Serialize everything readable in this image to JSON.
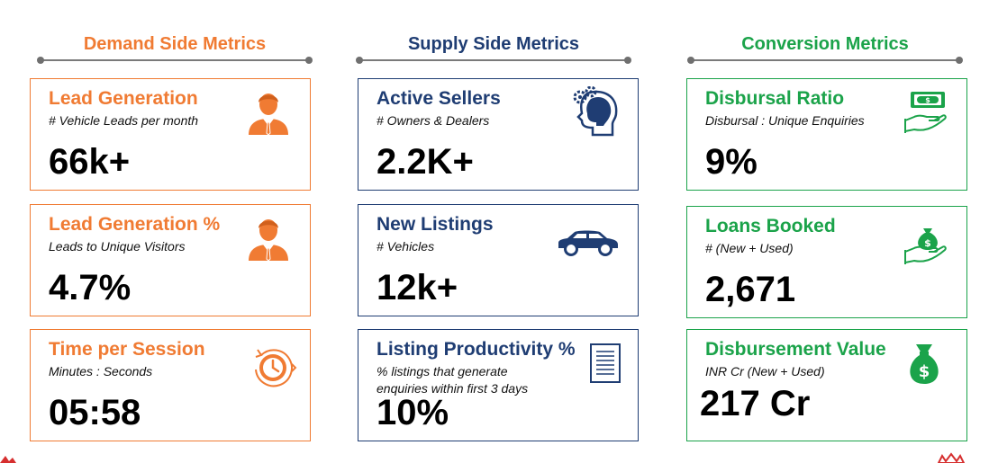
{
  "columns": [
    {
      "header": "Demand Side Metrics",
      "color": "#f07b33",
      "cards": [
        {
          "title": "Lead Generation",
          "subtitle": "#  Vehicle Leads per month",
          "value": "66k+",
          "icon": "businessman-icon"
        },
        {
          "title": "Lead Generation %",
          "subtitle": "Leads to Unique Visitors",
          "value": "4.7%",
          "icon": "businessman-icon"
        },
        {
          "title": "Time per Session",
          "subtitle": "Minutes : Seconds",
          "value": "05:58",
          "icon": "clock-icon"
        }
      ]
    },
    {
      "header": "Supply Side Metrics",
      "color": "#1f3d73",
      "cards": [
        {
          "title": "Active Sellers",
          "subtitle": "# Owners & Dealers",
          "value": "2.2K+",
          "icon": "head-gears-icon"
        },
        {
          "title": "New Listings",
          "subtitle": "# Vehicles",
          "value": "12k+",
          "icon": "car-icon"
        },
        {
          "title": "Listing Productivity %",
          "subtitle": "% listings that generate",
          "subtitle2": "enquiries within first 3 days",
          "value": "10%",
          "icon": "document-icon"
        }
      ]
    },
    {
      "header": "Conversion Metrics",
      "color": "#1ba34a",
      "cards": [
        {
          "title": "Disbursal Ratio",
          "subtitle": "Disbursal : Unique Enquiries",
          "value": "9%",
          "icon": "cash-hand-icon"
        },
        {
          "title": "Loans Booked",
          "subtitle": "# (New + Used)",
          "value": "2,671",
          "icon": "money-bag-hand-icon"
        },
        {
          "title": "Disbursement Value",
          "subtitle": "INR Cr (New + Used)",
          "value": "217 Cr",
          "icon": "money-bag-icon"
        }
      ]
    }
  ]
}
